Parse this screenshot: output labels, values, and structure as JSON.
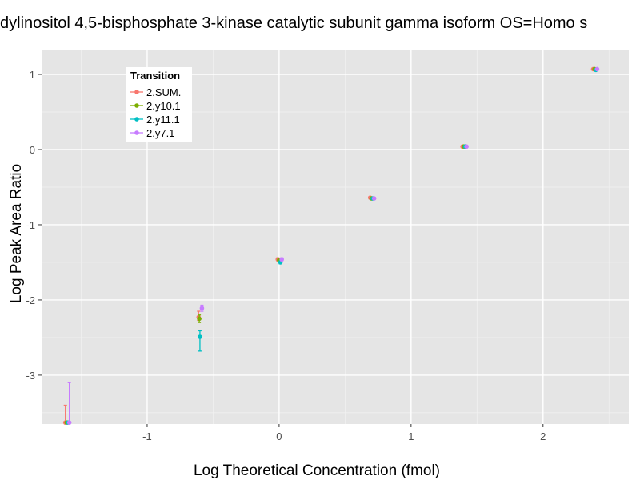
{
  "chart_data": {
    "type": "scatter",
    "title": "dylinositol 4,5-bisphosphate 3-kinase catalytic subunit gamma isoform OS=Homo s",
    "xlabel": "Log Theoretical Concentration (fmol)",
    "ylabel": "Log Peak Area Ratio",
    "xlim": [
      -1.8,
      2.65
    ],
    "ylim": [
      -3.65,
      1.33
    ],
    "x_ticks": [
      -1,
      0,
      1,
      2
    ],
    "y_ticks": [
      -3,
      -2,
      -1,
      0,
      1
    ],
    "x_tick_labels": [
      "-1",
      "0",
      "1",
      "2"
    ],
    "y_tick_labels": [
      "-3",
      "-2",
      "-1",
      "0",
      "1"
    ],
    "legend": {
      "title": "Transition",
      "position": "top-left"
    },
    "series": [
      {
        "name": "2.SUM.",
        "color": "#F8766D",
        "points": [
          {
            "x": -1.62,
            "y": -3.63,
            "ymin": -3.63,
            "ymax": -3.4
          },
          {
            "x": -0.61,
            "y": -2.23,
            "ymin": -2.27,
            "ymax": -2.15
          },
          {
            "x": -0.01,
            "y": -1.46,
            "ymin": -1.48,
            "ymax": -1.44
          },
          {
            "x": 0.69,
            "y": -0.64,
            "ymin": -0.65,
            "ymax": -0.63
          },
          {
            "x": 1.39,
            "y": 0.04,
            "ymin": 0.03,
            "ymax": 0.05
          },
          {
            "x": 2.38,
            "y": 1.07,
            "ymin": 1.06,
            "ymax": 1.08
          }
        ]
      },
      {
        "name": "2.y10.1",
        "color": "#7CAE00",
        "points": [
          {
            "x": -1.61,
            "y": -3.63,
            "ymin": -3.63,
            "ymax": -3.63
          },
          {
            "x": -0.605,
            "y": -2.25,
            "ymin": -2.3,
            "ymax": -2.2
          },
          {
            "x": 0.0,
            "y": -1.47,
            "ymin": -1.49,
            "ymax": -1.45
          },
          {
            "x": 0.7,
            "y": -0.65,
            "ymin": -0.66,
            "ymax": -0.64
          },
          {
            "x": 1.4,
            "y": 0.04,
            "ymin": 0.03,
            "ymax": 0.05
          },
          {
            "x": 2.39,
            "y": 1.07,
            "ymin": 1.06,
            "ymax": 1.08
          }
        ]
      },
      {
        "name": "2.y11.1",
        "color": "#00BFC4",
        "points": [
          {
            "x": -1.6,
            "y": -3.63,
            "ymin": -3.63,
            "ymax": -3.63
          },
          {
            "x": -0.6,
            "y": -2.49,
            "ymin": -2.68,
            "ymax": -2.41
          },
          {
            "x": 0.01,
            "y": -1.5,
            "ymin": -1.52,
            "ymax": -1.48
          },
          {
            "x": 0.71,
            "y": -0.65,
            "ymin": -0.66,
            "ymax": -0.64
          },
          {
            "x": 1.41,
            "y": 0.04,
            "ymin": 0.03,
            "ymax": 0.05
          },
          {
            "x": 2.4,
            "y": 1.06,
            "ymin": 1.05,
            "ymax": 1.07
          }
        ]
      },
      {
        "name": "2.y7.1",
        "color": "#C77CFF",
        "points": [
          {
            "x": -1.59,
            "y": -3.63,
            "ymin": -3.63,
            "ymax": -3.1
          },
          {
            "x": -0.585,
            "y": -2.11,
            "ymin": -2.15,
            "ymax": -2.07
          },
          {
            "x": 0.02,
            "y": -1.46,
            "ymin": -1.48,
            "ymax": -1.44
          },
          {
            "x": 0.72,
            "y": -0.65,
            "ymin": -0.66,
            "ymax": -0.64
          },
          {
            "x": 1.42,
            "y": 0.04,
            "ymin": 0.03,
            "ymax": 0.05
          },
          {
            "x": 2.41,
            "y": 1.07,
            "ymin": 1.06,
            "ymax": 1.08
          }
        ]
      }
    ]
  }
}
